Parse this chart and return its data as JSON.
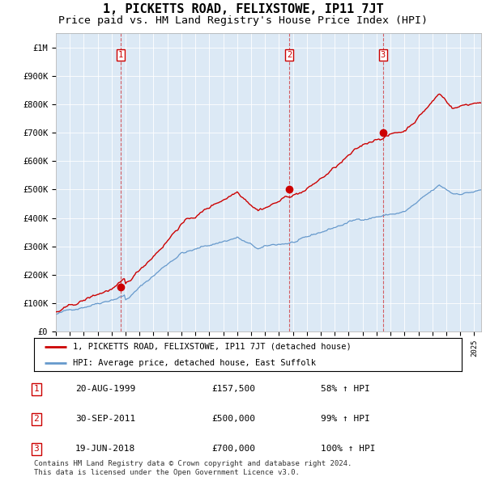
{
  "title": "1, PICKETTS ROAD, FELIXSTOWE, IP11 7JT",
  "subtitle": "Price paid vs. HM Land Registry's House Price Index (HPI)",
  "title_fontsize": 11,
  "subtitle_fontsize": 9.5,
  "property_color": "#cc0000",
  "hpi_color": "#6699cc",
  "chart_bg": "#dce9f5",
  "ylim": [
    0,
    1050000
  ],
  "yticks": [
    0,
    100000,
    200000,
    300000,
    400000,
    500000,
    600000,
    700000,
    800000,
    900000,
    1000000
  ],
  "ytick_labels": [
    "£0",
    "£100K",
    "£200K",
    "£300K",
    "£400K",
    "£500K",
    "£600K",
    "£700K",
    "£800K",
    "£900K",
    "£1M"
  ],
  "sale_year_floats": [
    1999.633,
    2011.747,
    2018.463
  ],
  "sale_prices": [
    157500,
    500000,
    700000
  ],
  "sale_labels": [
    "1",
    "2",
    "3"
  ],
  "legend_property": "1, PICKETTS ROAD, FELIXSTOWE, IP11 7JT (detached house)",
  "legend_hpi": "HPI: Average price, detached house, East Suffolk",
  "table_rows": [
    {
      "num": "1",
      "date": "20-AUG-1999",
      "price": "£157,500",
      "hpi": "58% ↑ HPI"
    },
    {
      "num": "2",
      "date": "30-SEP-2011",
      "price": "£500,000",
      "hpi": "99% ↑ HPI"
    },
    {
      "num": "3",
      "date": "19-JUN-2018",
      "price": "£700,000",
      "hpi": "100% ↑ HPI"
    }
  ],
  "footer": "Contains HM Land Registry data © Crown copyright and database right 2024.\nThis data is licensed under the Open Government Licence v3.0.",
  "xstart": 1995.0,
  "xend": 2025.5
}
